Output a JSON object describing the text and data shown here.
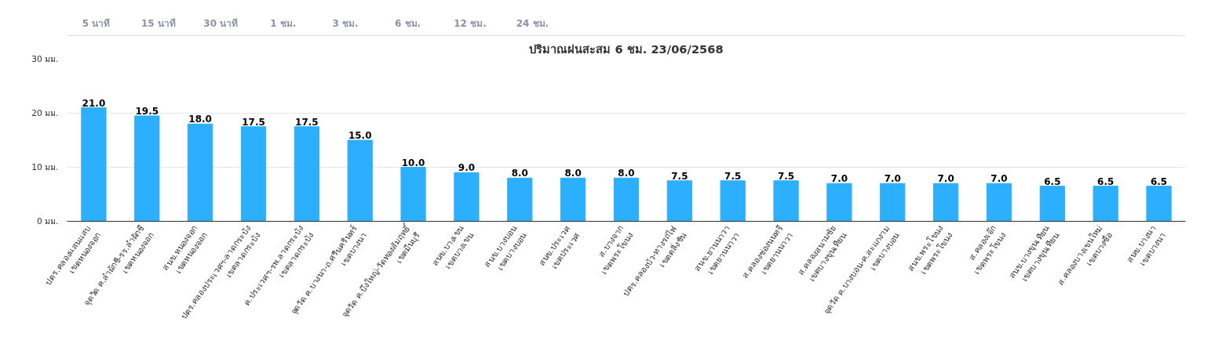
{
  "chart_data": {
    "type": "bar",
    "title": "ปริมาณฝนสะสม 6 ชม. 23/06/2568",
    "categories": [
      "ปตร.คลองแสนแสบ\nเขตหนองจอก",
      "จุดวัด ค.ลำผักชี-รร.ลำผักชี\nเขตหนองจอก",
      "สนข.หนองจอก\nเขตหนองจอก",
      "ปตร.คลองประเวศฯ-ลาดกระบัง\nเขตลาดกระบัง",
      "ค.ประเวศฯ-รพ.ลาดกระบัง\nเขตลาดกระบัง",
      "จุดวัด ค.บางนา-ถ.ศรีนครินทร์\nเขตบางนา",
      "จุดวัด ค.บึงใหญ่-วัดทองสัมฤทธิ์\nเขตมีนบุรี",
      "สนข.บางเขน\nเขตบางเขน",
      "สนข.บางบอน\nเขตบางบอน",
      "สนข.ประเวศ\nเขตประเวศ",
      "ส.บางจาก\nเขตพระโขนง",
      "ปตร.คลองบัว-ทางรถไฟ\nเขตตลิ่งชัน",
      "สนข.ยานนาวา\nเขตยานนาวา",
      "ส.คลองช่องนนทรี\nเขตยานนาวา",
      "ส.คลองสนามชัย\nเขตบางขุนเทียน",
      "จุดวัด ค.บางบอน-ค.สะแกงาม\nเขตบางบอน",
      "สนข.พระโขนง\nเขตพระโขนง",
      "ส.คลองเจ๊ก\nเขตพระโขนง",
      "สนข.บางขุนเทียน\nเขตบางขุนเทียน",
      "ส.คลองบางเขนใหม่\nเขตบางซื่อ",
      "สนข.บางนา\nเขตบางนา"
    ],
    "values": [
      21.0,
      19.5,
      18.0,
      17.5,
      17.5,
      15.0,
      10.0,
      9.0,
      8.0,
      8.0,
      8.0,
      7.5,
      7.5,
      7.5,
      7.0,
      7.0,
      7.0,
      7.0,
      6.5,
      6.5,
      6.5
    ],
    "value_labels": [
      "21.0",
      "19.5",
      "18.0",
      "17.5",
      "17.5",
      "15.0",
      "10.0",
      "9.0",
      "8.0",
      "8.0",
      "8.0",
      "7.5",
      "7.5",
      "7.5",
      "7.0",
      "7.0",
      "7.0",
      "7.0",
      "6.5",
      "6.5",
      "6.5"
    ],
    "color": "#2caffe",
    "ylim": [
      0,
      30
    ],
    "yticks": [
      {
        "value": 0,
        "label": "0 มม."
      },
      {
        "value": 10,
        "label": "10 มม."
      },
      {
        "value": 20,
        "label": "20 มม."
      },
      {
        "value": 30,
        "label": "30 มม."
      }
    ],
    "grid": "y",
    "annotations": [
      "5 นาที",
      "15 นาที",
      "30 นาที",
      "1 ชม.",
      "3 ชม.",
      "6 ชม.",
      "12 ชม.",
      "24 ชม."
    ]
  }
}
